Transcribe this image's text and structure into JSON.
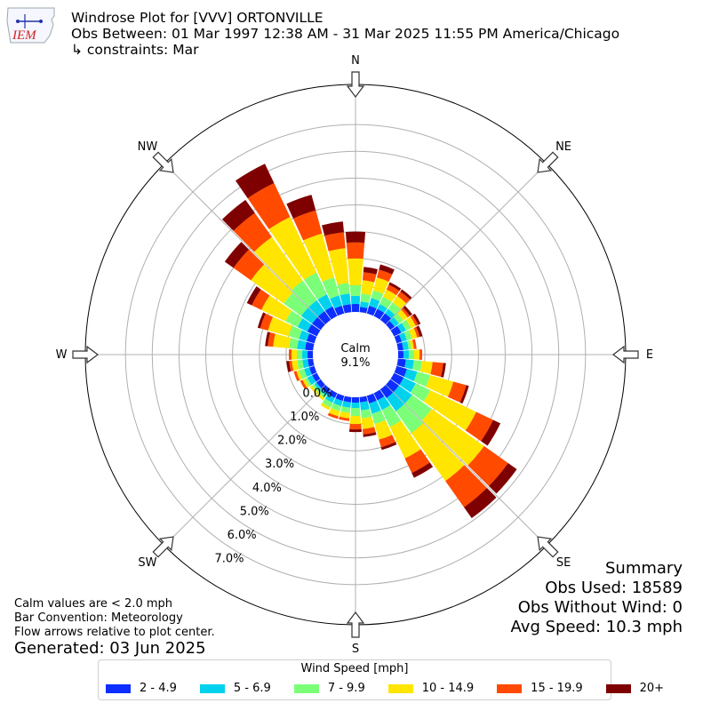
{
  "logo": {
    "text": "IEM",
    "color": "#d22"
  },
  "title": {
    "line1": "Windrose Plot for [VVV] ORTONVILLE",
    "line2": "Obs Between: 01 Mar 1997 12:38 AM - 31 Mar 2025 11:55 PM America/Chicago",
    "line3": "↳ constraints: Mar"
  },
  "chart_data": {
    "type": "windrose",
    "directions": [
      "N",
      "NE",
      "E",
      "SE",
      "S",
      "SW",
      "W",
      "NW"
    ],
    "calm_label": "Calm",
    "calm_value": "9.1%",
    "radial_ticks": [
      "0.0%",
      "1.0%",
      "2.0%",
      "3.0%",
      "4.0%",
      "5.0%",
      "6.0%",
      "7.0%"
    ],
    "rlim": [
      0,
      8.5
    ],
    "bin_width_deg": 10,
    "speed_bins": [
      {
        "label": "2 - 4.9",
        "color": "#0d2eff"
      },
      {
        "label": "5 - 6.9",
        "color": "#00d2ee"
      },
      {
        "label": "7 - 9.9",
        "color": "#7cff78"
      },
      {
        "label": "10 - 14.9",
        "color": "#ffe500"
      },
      {
        "label": "15 - 19.9",
        "color": "#ff4a00"
      },
      {
        "label": "20+",
        "color": "#7f0000"
      }
    ],
    "sectors": [
      {
        "dir": 0,
        "values": [
          0.3,
          0.3,
          0.4,
          1.0,
          0.6,
          0.4
        ]
      },
      {
        "dir": 10,
        "values": [
          0.2,
          0.2,
          0.3,
          0.5,
          0.3,
          0.2
        ]
      },
      {
        "dir": 20,
        "values": [
          0.3,
          0.3,
          0.3,
          0.5,
          0.3,
          0.2
        ]
      },
      {
        "dir": 30,
        "values": [
          0.3,
          0.2,
          0.3,
          0.3,
          0.2,
          0.1
        ]
      },
      {
        "dir": 40,
        "values": [
          0.3,
          0.2,
          0.3,
          0.3,
          0.2,
          0.1
        ]
      },
      {
        "dir": 50,
        "values": [
          0.2,
          0.2,
          0.2,
          0.2,
          0.1,
          0.1
        ]
      },
      {
        "dir": 60,
        "values": [
          0.3,
          0.2,
          0.2,
          0.2,
          0.1,
          0.1
        ]
      },
      {
        "dir": 70,
        "values": [
          0.2,
          0.2,
          0.2,
          0.2,
          0.1,
          0.1
        ]
      },
      {
        "dir": 80,
        "values": [
          0.2,
          0.2,
          0.1,
          0.1,
          0.1,
          0.0
        ]
      },
      {
        "dir": 90,
        "values": [
          0.2,
          0.2,
          0.2,
          0.2,
          0.1,
          0.0
        ]
      },
      {
        "dir": 100,
        "values": [
          0.3,
          0.3,
          0.3,
          0.4,
          0.4,
          0.1
        ]
      },
      {
        "dir": 110,
        "values": [
          0.4,
          0.4,
          0.5,
          0.9,
          0.5,
          0.1
        ]
      },
      {
        "dir": 120,
        "values": [
          0.4,
          0.5,
          0.6,
          1.9,
          0.7,
          0.3
        ]
      },
      {
        "dir": 130,
        "values": [
          0.4,
          0.6,
          0.9,
          2.4,
          1.1,
          0.4
        ]
      },
      {
        "dir": 140,
        "values": [
          0.4,
          0.6,
          1.0,
          2.2,
          1.2,
          0.5
        ]
      },
      {
        "dir": 150,
        "values": [
          0.3,
          0.4,
          0.7,
          1.3,
          0.6,
          0.2
        ]
      },
      {
        "dir": 160,
        "values": [
          0.3,
          0.4,
          0.4,
          0.6,
          0.3,
          0.1
        ]
      },
      {
        "dir": 170,
        "values": [
          0.2,
          0.3,
          0.3,
          0.4,
          0.2,
          0.1
        ]
      },
      {
        "dir": 180,
        "values": [
          0.2,
          0.2,
          0.3,
          0.3,
          0.2,
          0.1
        ]
      },
      {
        "dir": 190,
        "values": [
          0.2,
          0.2,
          0.2,
          0.2,
          0.1,
          0.0
        ]
      },
      {
        "dir": 200,
        "values": [
          0.2,
          0.2,
          0.2,
          0.2,
          0.1,
          0.0
        ]
      },
      {
        "dir": 210,
        "values": [
          0.2,
          0.2,
          0.2,
          0.1,
          0.0,
          0.0
        ]
      },
      {
        "dir": 220,
        "values": [
          0.2,
          0.1,
          0.1,
          0.1,
          0.0,
          0.0
        ]
      },
      {
        "dir": 230,
        "values": [
          0.2,
          0.1,
          0.1,
          0.1,
          0.0,
          0.0
        ]
      },
      {
        "dir": 240,
        "values": [
          0.2,
          0.2,
          0.1,
          0.1,
          0.1,
          0.0
        ]
      },
      {
        "dir": 250,
        "values": [
          0.2,
          0.2,
          0.2,
          0.1,
          0.1,
          0.0
        ]
      },
      {
        "dir": 260,
        "values": [
          0.2,
          0.2,
          0.2,
          0.2,
          0.1,
          0.1
        ]
      },
      {
        "dir": 270,
        "values": [
          0.2,
          0.2,
          0.2,
          0.2,
          0.1,
          0.0
        ]
      },
      {
        "dir": 280,
        "values": [
          0.3,
          0.3,
          0.3,
          0.6,
          0.2,
          0.1
        ]
      },
      {
        "dir": 290,
        "values": [
          0.3,
          0.3,
          0.4,
          0.8,
          0.3,
          0.1
        ]
      },
      {
        "dir": 300,
        "values": [
          0.4,
          0.4,
          0.5,
          1.0,
          0.4,
          0.2
        ]
      },
      {
        "dir": 310,
        "values": [
          0.4,
          0.5,
          0.8,
          1.5,
          0.8,
          0.4
        ]
      },
      {
        "dir": 320,
        "values": [
          0.4,
          0.5,
          0.9,
          2.0,
          1.1,
          0.6
        ]
      },
      {
        "dir": 330,
        "values": [
          0.4,
          0.5,
          0.9,
          2.3,
          1.4,
          0.8
        ]
      },
      {
        "dir": 340,
        "values": [
          0.3,
          0.4,
          0.7,
          1.7,
          0.9,
          0.6
        ]
      },
      {
        "dir": 350,
        "values": [
          0.3,
          0.4,
          0.4,
          1.3,
          0.6,
          0.4
        ]
      }
    ]
  },
  "summary": {
    "title": "Summary",
    "obs_used": "Obs Used: 18589",
    "obs_without_wind": "Obs Without Wind: 0",
    "avg_speed": "Avg Speed: 10.3 mph"
  },
  "footnotes": {
    "calm_note": "Calm values are < 2.0 mph",
    "bar_convention": "Bar Convention: Meteorology",
    "flow_arrows": "Flow arrows relative to plot center.",
    "generated": "Generated: 03 Jun 2025"
  },
  "legend": {
    "title": "Wind Speed [mph]"
  }
}
